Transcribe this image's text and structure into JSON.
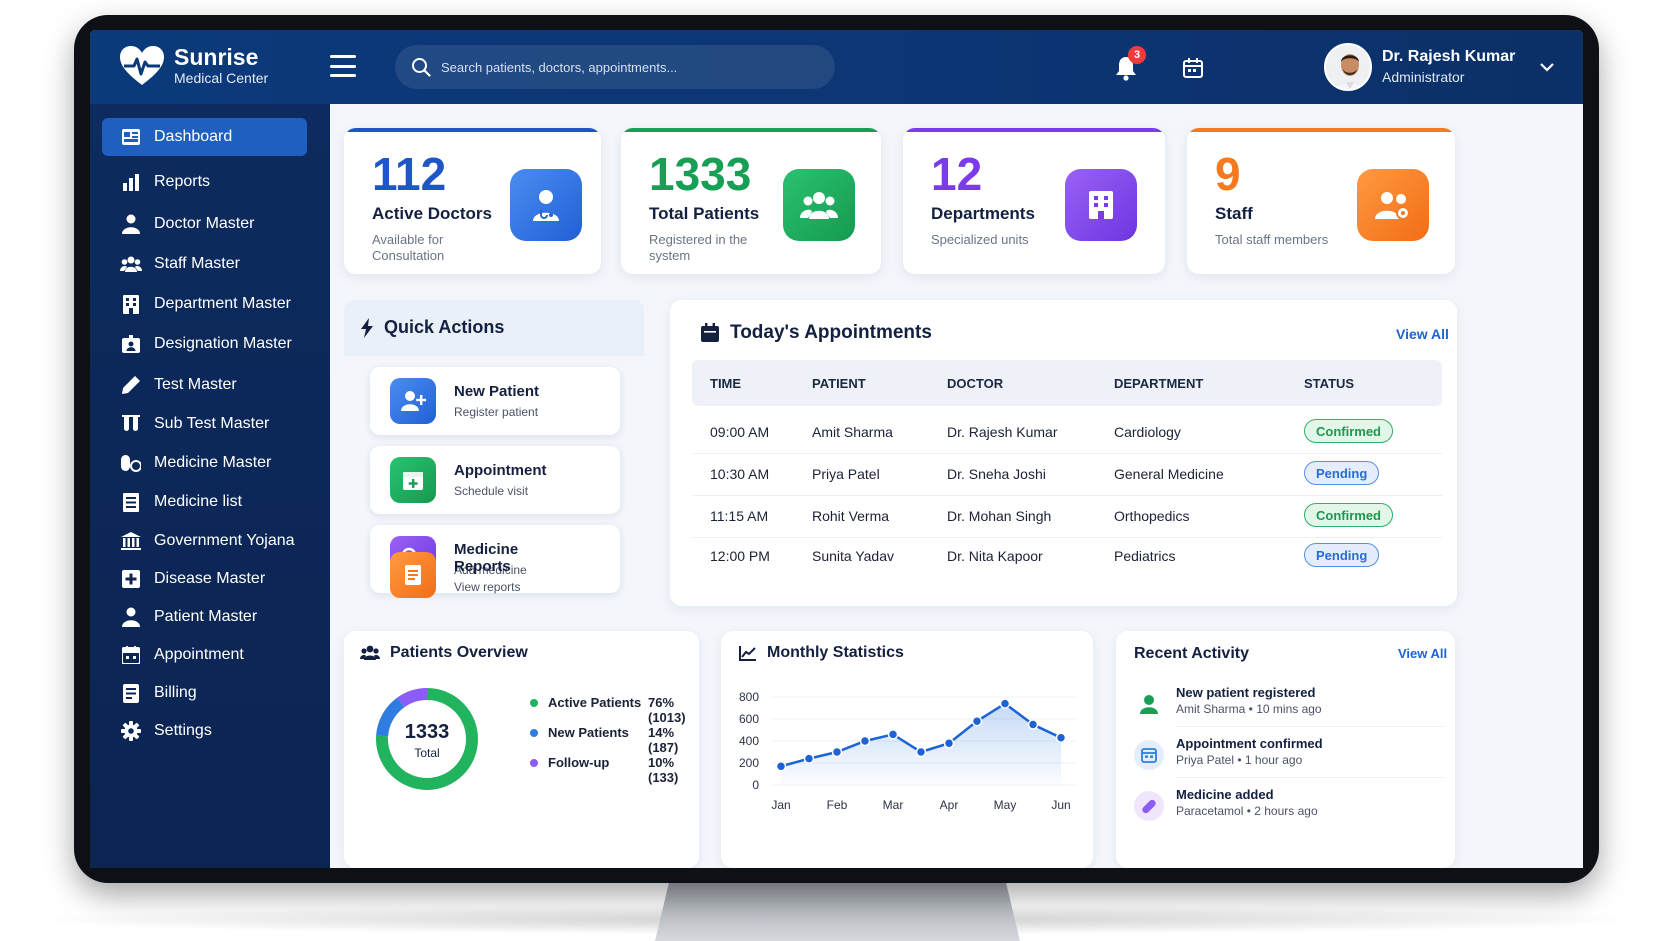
{
  "app": {
    "name": "Sunrise",
    "subtitle": "Medical Center"
  },
  "header": {
    "search_placeholder": "Search patients, doctors, appointments...",
    "notification_count": "3",
    "user": {
      "name": "Dr. Rajesh Kumar",
      "role": "Administrator"
    }
  },
  "sidebar": {
    "items": [
      {
        "label": "Dashboard",
        "icon": "dashboard-icon",
        "active": true
      },
      {
        "label": "Reports",
        "icon": "bar-chart-icon"
      },
      {
        "label": "Doctor Master",
        "icon": "doctor-icon"
      },
      {
        "label": "Staff Master",
        "icon": "staff-icon"
      },
      {
        "label": "Department Master",
        "icon": "building-icon"
      },
      {
        "label": "Designation Master",
        "icon": "id-badge-icon"
      },
      {
        "label": "Test Master",
        "icon": "pencil-icon"
      },
      {
        "label": "Sub Test Master",
        "icon": "test-tubes-icon"
      },
      {
        "label": "Medicine Master",
        "icon": "pills-icon"
      },
      {
        "label": "Medicine list",
        "icon": "list-icon"
      },
      {
        "label": "Government Yojana",
        "icon": "government-building-icon"
      },
      {
        "label": "Disease Master",
        "icon": "medical-plus-icon"
      },
      {
        "label": "Patient Master",
        "icon": "patient-icon"
      },
      {
        "label": "Appointment",
        "icon": "calendar-icon"
      },
      {
        "label": "Billing",
        "icon": "invoice-icon"
      },
      {
        "label": "Settings",
        "icon": "gear-icon"
      }
    ]
  },
  "stats": [
    {
      "value": "112",
      "title": "Active Doctors",
      "subtitle": "Available for Consultation",
      "color": "#1e56c8",
      "icon": "doctor-icon"
    },
    {
      "value": "1333",
      "title": "Total Patients",
      "subtitle": "Registered in the system",
      "color": "#17a055",
      "icon": "users-icon"
    },
    {
      "value": "12",
      "title": "Departments",
      "subtitle": "Specialized units",
      "color": "#7c3aed",
      "icon": "building-icon"
    },
    {
      "value": "9",
      "title": "Staff",
      "subtitle": "Total staff members",
      "color": "#f57a1f",
      "icon": "staff-icon"
    }
  ],
  "quick_actions": {
    "title": "Quick Actions",
    "items": [
      {
        "title": "New Patient",
        "subtitle": "Register patient"
      },
      {
        "title": "Appointment",
        "subtitle": "Schedule visit"
      },
      {
        "title": "Medicine",
        "subtitle": "Add medicine"
      },
      {
        "title": "Reports",
        "subtitle": "View reports"
      }
    ]
  },
  "appointments": {
    "title": "Today's Appointments",
    "view_all": "View All",
    "columns": [
      "TIME",
      "PATIENT",
      "DOCTOR",
      "DEPARTMENT",
      "STATUS"
    ],
    "rows": [
      {
        "time": "09:00 AM",
        "patient": "Amit Sharma",
        "doctor": "Dr. Rajesh Kumar",
        "department": "Cardiology",
        "status": "Confirmed"
      },
      {
        "time": "10:30 AM",
        "patient": "Priya Patel",
        "doctor": "Dr. Sneha Joshi",
        "department": "General Medicine",
        "status": "Pending"
      },
      {
        "time": "11:15 AM",
        "patient": "Rohit Verma",
        "doctor": "Dr. Mohan Singh",
        "department": "Orthopedics",
        "status": "Confirmed"
      },
      {
        "time": "12:00 PM",
        "patient": "Sunita Yadav",
        "doctor": "Dr. Nita Kapoor",
        "department": "Pediatrics",
        "status": "Pending"
      }
    ]
  },
  "patients_overview": {
    "title": "Patients Overview",
    "total": "1333",
    "total_label": "Total",
    "segments": [
      {
        "label": "Active Patients",
        "value": "76% (1013)",
        "percent": 76,
        "color": "#22b35e"
      },
      {
        "label": "New Patients",
        "value": "14% (187)",
        "percent": 14,
        "color": "#2f7de1"
      },
      {
        "label": "Follow-up",
        "value": "10% (133)",
        "percent": 10,
        "color": "#8b5cf6"
      }
    ]
  },
  "monthly_statistics": {
    "title": "Monthly Statistics",
    "chart_data": {
      "type": "line",
      "x": [
        "Jan",
        "Feb",
        "Mar",
        "Apr",
        "May",
        "Jun"
      ],
      "yticks": [
        "800",
        "600",
        "400",
        "200",
        "0"
      ],
      "ylim": [
        0,
        800
      ],
      "points": [
        {
          "x": 0,
          "y": 170
        },
        {
          "x": 0.5,
          "y": 240
        },
        {
          "x": 1,
          "y": 300
        },
        {
          "x": 1.5,
          "y": 400
        },
        {
          "x": 2,
          "y": 460
        },
        {
          "x": 2.5,
          "y": 300
        },
        {
          "x": 3,
          "y": 380
        },
        {
          "x": 3.5,
          "y": 580
        },
        {
          "x": 4,
          "y": 740
        },
        {
          "x": 4.5,
          "y": 550
        },
        {
          "x": 5,
          "y": 430
        }
      ],
      "color": "#1d63d6"
    }
  },
  "recent_activity": {
    "title": "Recent Activity",
    "view_all": "View All",
    "items": [
      {
        "title": "New patient registered",
        "subtitle": "Amit Sharma • 10 mins ago",
        "icon": "user-icon",
        "color": "#17a055"
      },
      {
        "title": "Appointment confirmed",
        "subtitle": "Priya Patel • 1 hour ago",
        "icon": "calendar-icon",
        "color": "#2f7de1"
      },
      {
        "title": "Medicine added",
        "subtitle": "Paracetamol • 2 hours ago",
        "icon": "pill-icon",
        "color": "#8b5cf6"
      }
    ]
  }
}
